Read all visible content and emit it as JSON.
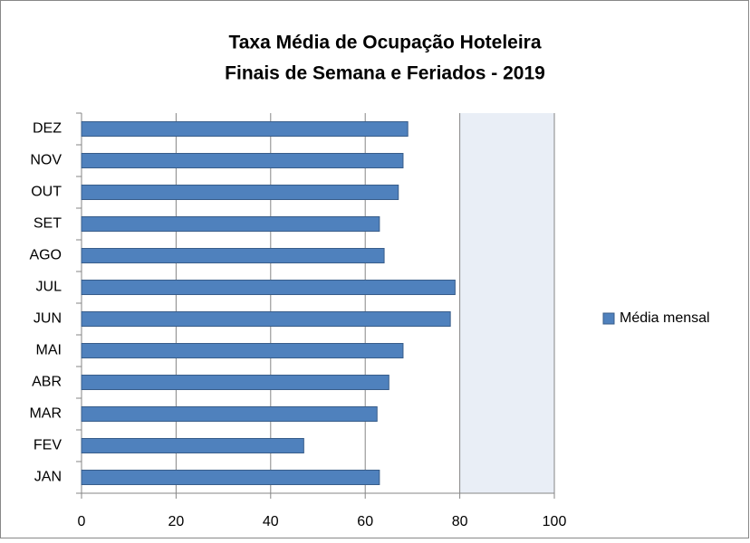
{
  "chart_data": {
    "type": "bar",
    "orientation": "horizontal",
    "title": "Taxa Média de Ocupação Hoteleira",
    "subtitle": "Finais de Semana e Feriados - 2019",
    "categories": [
      "JAN",
      "FEV",
      "MAR",
      "ABR",
      "MAI",
      "JUN",
      "JUL",
      "AGO",
      "SET",
      "OUT",
      "NOV",
      "DEZ"
    ],
    "series": [
      {
        "name": "Média mensal",
        "color": "#4f81bd",
        "values": [
          63,
          47,
          62.5,
          65,
          68,
          78,
          79,
          64,
          63,
          67,
          68,
          69
        ]
      }
    ],
    "xlim": [
      0,
      100
    ],
    "xticks": [
      0,
      20,
      40,
      60,
      80,
      100
    ],
    "grid": true,
    "legend": "right"
  }
}
